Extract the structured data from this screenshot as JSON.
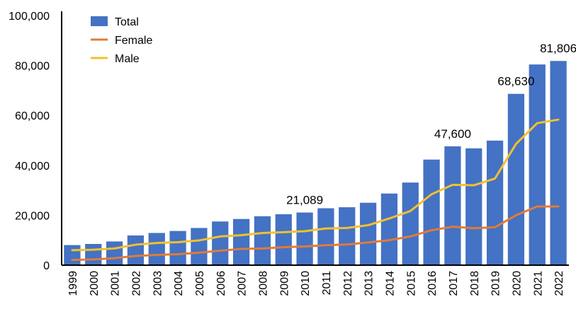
{
  "chart_data": {
    "type": "bar",
    "categories": [
      "1999",
      "2000",
      "2001",
      "2002",
      "2003",
      "2004",
      "2005",
      "2006",
      "2007",
      "2008",
      "2009",
      "2010",
      "2011",
      "2012",
      "2013",
      "2014",
      "2015",
      "2016",
      "2017",
      "2018",
      "2019",
      "2020",
      "2021",
      "2022"
    ],
    "series": [
      {
        "name": "Total",
        "type": "bar",
        "color": "#4472c4",
        "values": [
          8050,
          8500,
          9500,
          11900,
          12900,
          13700,
          14900,
          17500,
          18500,
          19600,
          20400,
          21089,
          22800,
          23200,
          25000,
          28700,
          33100,
          42300,
          47600,
          46800,
          49900,
          68630,
          80400,
          81806
        ]
      },
      {
        "name": "Female",
        "type": "line",
        "color": "#e07b39",
        "values": [
          2100,
          2300,
          2800,
          3700,
          4100,
          4400,
          5000,
          5800,
          6500,
          6700,
          7200,
          7500,
          8000,
          8300,
          9100,
          10000,
          11500,
          14000,
          15400,
          14800,
          15200,
          20000,
          23500,
          23500
        ]
      },
      {
        "name": "Male",
        "type": "line",
        "color": "#f2c12e",
        "values": [
          6000,
          6200,
          6700,
          8200,
          8900,
          9200,
          9900,
          11500,
          12000,
          12900,
          13200,
          13600,
          14700,
          14900,
          16000,
          18700,
          21700,
          28400,
          32200,
          32000,
          34700,
          48600,
          56900,
          58300
        ]
      }
    ],
    "data_labels": [
      {
        "category": "2010",
        "text": "21,089",
        "value": 21089
      },
      {
        "category": "2017",
        "text": "47,600",
        "value": 47600
      },
      {
        "category": "2020",
        "text": "68,630",
        "value": 68630
      },
      {
        "category": "2022",
        "text": "81,806",
        "value": 81806
      }
    ],
    "y_ticks": [
      {
        "value": 0,
        "label": "0"
      },
      {
        "value": 20000,
        "label": "20,000"
      },
      {
        "value": 40000,
        "label": "40,000"
      },
      {
        "value": 60000,
        "label": "60,000"
      },
      {
        "value": 80000,
        "label": "80,000"
      },
      {
        "value": 100000,
        "label": "100,000"
      }
    ],
    "ylim": [
      0,
      100000
    ],
    "title": "",
    "xlabel": "",
    "ylabel": "",
    "grid": false,
    "legend": {
      "placement": "top-left",
      "entries": [
        "Total",
        "Female",
        "Male"
      ]
    }
  }
}
